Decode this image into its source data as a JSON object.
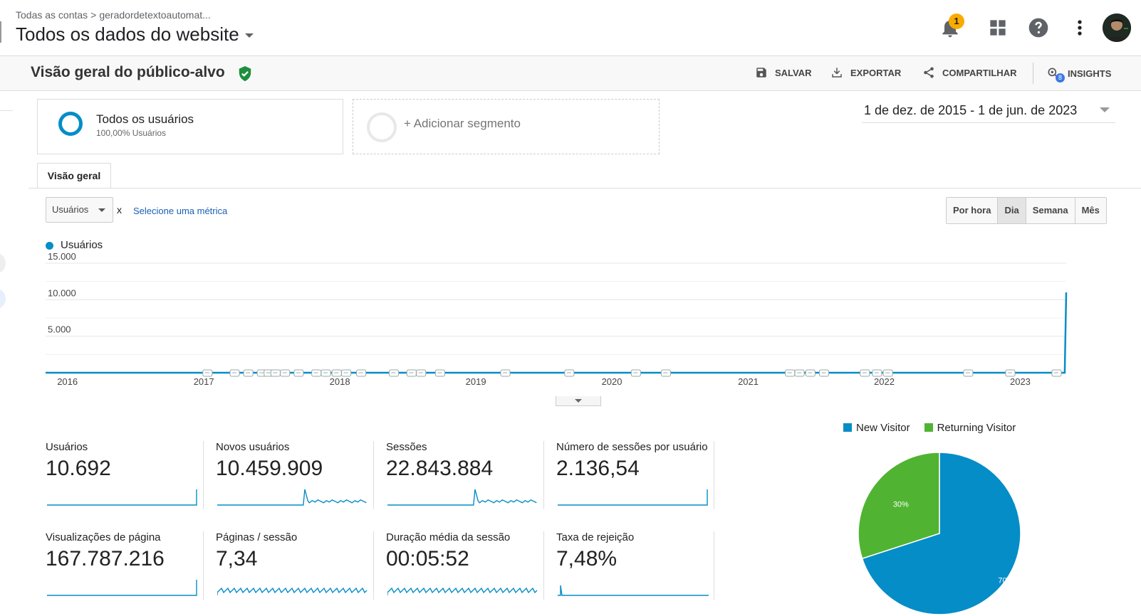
{
  "header": {
    "breadcrumb_root": "Todas as contas",
    "breadcrumb_separator": ">",
    "breadcrumb_account": "geradordetextoautomat...",
    "property_title": "Todos os dados do website",
    "notification_count": "1"
  },
  "report": {
    "title": "Visão geral do público-alvo",
    "actions": {
      "save": "SALVAR",
      "export": "EXPORTAR",
      "share": "COMPARTILHAR",
      "insights": "INSIGHTS",
      "insights_badge": "8"
    }
  },
  "segments": {
    "active_name": "Todos os usuários",
    "active_sub": "100,00% Usuários",
    "add_label": "+ Adicionar segmento"
  },
  "date_range": "1 de dez. de 2015 - 1 de jun. de 2023",
  "tab_label": "Visão geral",
  "metric_selector": {
    "selected": "Usuários",
    "x": "x",
    "link": "Selecione uma métrica"
  },
  "granularity": [
    "Por hora",
    "Dia",
    "Semana",
    "Mês"
  ],
  "granularity_active": "Dia",
  "chart_data": {
    "type": "line",
    "series": [
      {
        "name": "Usuários",
        "points": [
          [
            "2015-12-01",
            0
          ],
          [
            "2023-05-28",
            0
          ],
          [
            "2023-06-01",
            11000
          ]
        ]
      }
    ],
    "y_ticks": [
      "15.000",
      "10.000",
      "5.000"
    ],
    "ylim": [
      0,
      15000
    ],
    "x_ticks": [
      "2016",
      "2017",
      "2018",
      "2019",
      "2020",
      "2021",
      "2022",
      "2023"
    ],
    "grid": true,
    "color": "#058dc7",
    "annotation_years": [
      2017.1,
      2017.3,
      2017.4,
      2017.5,
      2017.55,
      2017.6,
      2017.67,
      2017.77,
      2017.9,
      2017.97,
      2018.05,
      2018.12,
      2018.23,
      2018.47,
      2018.6,
      2018.67,
      2018.81,
      2019.29,
      2019.76,
      2020.25,
      2020.47,
      2021.38,
      2021.45,
      2021.53,
      2021.63,
      2021.93,
      2022.02,
      2022.1,
      2022.69,
      2023.0,
      2023.34
    ]
  },
  "scorecards": [
    {
      "label": "Usuários",
      "value": "10.692",
      "spark": "flat-end"
    },
    {
      "label": "Novos usuários",
      "value": "10.459.909",
      "spark": "spike-mid"
    },
    {
      "label": "Sessões",
      "value": "22.843.884",
      "spark": "spike-mid"
    },
    {
      "label": "Número de sessões por usuário",
      "value": "2.136,54",
      "spark": "flat-end"
    },
    {
      "label": "Visualizações de página",
      "value": "167.787.216",
      "spark": "flat-end"
    },
    {
      "label": "Páginas / sessão",
      "value": "7,34",
      "spark": "noisy"
    },
    {
      "label": "Duração média da sessão",
      "value": "00:05:52",
      "spark": "noisy"
    },
    {
      "label": "Taxa de rejeição",
      "value": "7,48%",
      "spark": "flat-start"
    }
  ],
  "pie": {
    "legend": [
      {
        "name": "New Visitor",
        "color": "#058dc7"
      },
      {
        "name": "Returning Visitor",
        "color": "#50b432"
      }
    ],
    "chart_data": {
      "type": "pie",
      "categories": [
        "New Visitor",
        "Returning Visitor"
      ],
      "values": [
        70,
        30
      ],
      "labels": [
        "70%",
        "30%"
      ]
    }
  }
}
